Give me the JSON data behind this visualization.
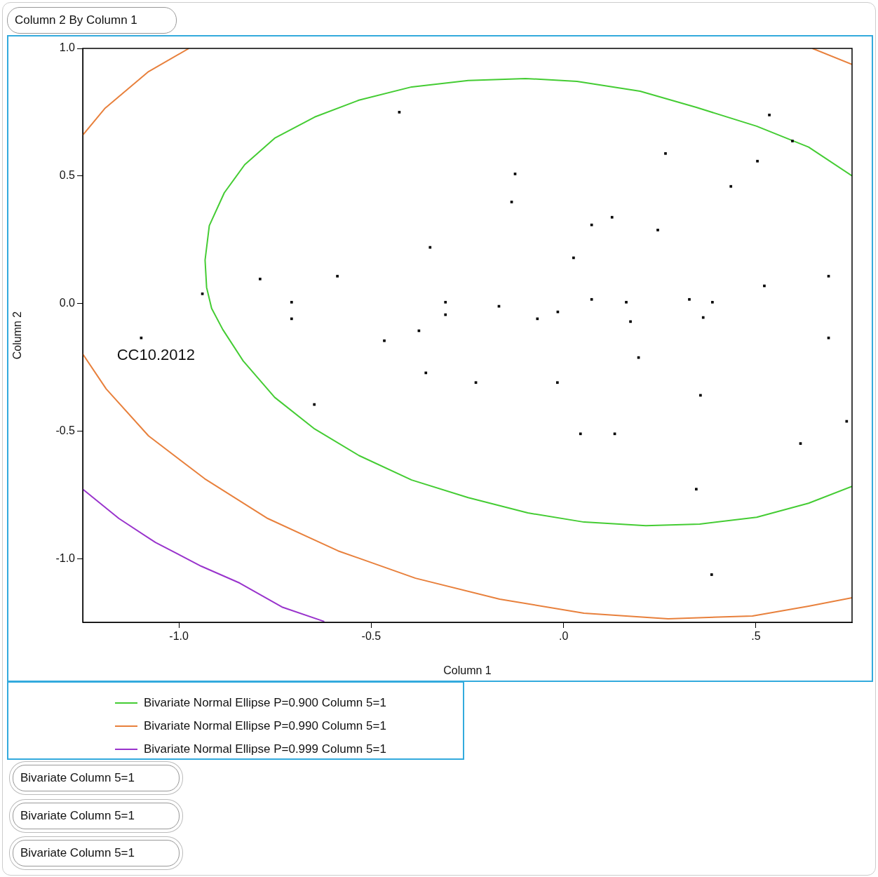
{
  "chart_data": {
    "type": "scatter",
    "title": "Column 2 By Column 1",
    "xlabel": "Column 1",
    "ylabel": "Column 2",
    "xlim": [
      -1.25,
      0.75
    ],
    "ylim": [
      -1.25,
      1.0
    ],
    "xticks": [
      {
        "value": -1.0,
        "label": "-1.0"
      },
      {
        "value": -0.5,
        "label": "-0.5"
      },
      {
        "value": 0,
        "label": ".0"
      },
      {
        "value": 0.5,
        "label": ".5"
      }
    ],
    "yticks": [
      {
        "value": -1.0,
        "label": "-1.0"
      },
      {
        "value": -0.5,
        "label": "-0.5"
      },
      {
        "value": 0,
        "label": "0.0"
      },
      {
        "value": 0.5,
        "label": "0.5"
      },
      {
        "value": 1.0,
        "label": "1.0"
      }
    ],
    "grid": false,
    "legend": "bottom left",
    "marker": "square",
    "line_style": "solid",
    "series": [
      {
        "color": "#000000",
        "x": [
          -0.427,
          -0.126,
          -0.135,
          0.265,
          0.535,
          0.595,
          0.504,
          0.435,
          0.126,
          0.073,
          0.245,
          -0.347,
          0.026,
          -0.789,
          -0.588,
          -0.939,
          0.689,
          0.522,
          -0.707,
          -0.307,
          0.327,
          0.387,
          0.073,
          0.163,
          -0.168,
          -0.015,
          -0.307,
          -0.707,
          -0.068,
          0.363,
          0.174,
          -0.376,
          -1.098,
          0.689,
          -0.466,
          0.195,
          -0.358,
          -0.228,
          -0.016,
          0.356,
          -0.648,
          0.044,
          0.133,
          0.736,
          0.616,
          0.345,
          0.385
        ],
        "values": [
          0.75,
          0.508,
          0.398,
          0.588,
          0.739,
          0.637,
          0.558,
          0.459,
          0.338,
          0.308,
          0.288,
          0.22,
          0.179,
          0.096,
          0.107,
          0.038,
          0.107,
          0.069,
          0.005,
          0.005,
          0.016,
          0.005,
          0.016,
          0.005,
          -0.011,
          -0.033,
          -0.044,
          -0.06,
          -0.06,
          -0.055,
          -0.071,
          -0.107,
          -0.135,
          -0.135,
          -0.146,
          -0.212,
          -0.272,
          -0.31,
          -0.31,
          -0.36,
          -0.396,
          -0.511,
          -0.511,
          -0.462,
          -0.549,
          -0.728,
          -1.063
        ]
      },
      {
        "type": "line",
        "marker": "none",
        "name": "Bivariate Normal Ellipse P=0.900 Column 5=1",
        "color": "#44cc33",
        "x": [
          0.75,
          0.637,
          0.502,
          0.345,
          0.199,
          0.035,
          -0.099,
          -0.248,
          -0.395,
          -0.532,
          -0.647,
          -0.751,
          -0.829,
          -0.882,
          -0.921,
          -0.932,
          -0.928,
          -0.915,
          -0.886,
          -0.833,
          -0.751,
          -0.647,
          -0.532,
          -0.395,
          -0.248,
          -0.093,
          0.053,
          0.214,
          0.354,
          0.502,
          0.637,
          0.75
        ],
        "values": [
          0.5,
          0.613,
          0.695,
          0.769,
          0.832,
          0.871,
          0.882,
          0.874,
          0.849,
          0.797,
          0.731,
          0.648,
          0.544,
          0.434,
          0.305,
          0.17,
          0.063,
          -0.019,
          -0.102,
          -0.225,
          -0.368,
          -0.492,
          -0.596,
          -0.692,
          -0.761,
          -0.821,
          -0.857,
          -0.871,
          -0.865,
          -0.838,
          -0.783,
          -0.717
        ]
      },
      {
        "type": "line",
        "marker": "none",
        "name": "Bivariate Normal Ellipse P=0.990 Column 5=1",
        "color": "#e8803c",
        "x": [
          -1.25,
          -1.193,
          -1.079,
          -0.974,
          null,
          0.647,
          0.75,
          null,
          -1.25,
          -1.189,
          -1.079,
          -0.933,
          -0.769,
          -0.586,
          -0.385,
          -0.166,
          0.053,
          0.272,
          0.491,
          0.637,
          0.75
        ],
        "values": [
          0.66,
          0.764,
          0.909,
          1.0,
          null,
          1.0,
          0.937,
          null,
          -0.198,
          -0.335,
          -0.519,
          -0.687,
          -0.843,
          -0.97,
          -1.077,
          -1.159,
          -1.214,
          -1.236,
          -1.225,
          -1.187,
          -1.154
        ]
      },
      {
        "type": "line",
        "marker": "none",
        "name": "Bivariate Normal Ellipse P=0.999 Column 5=1",
        "color": "#9933cc",
        "x": [
          -1.25,
          -1.156,
          -1.061,
          -0.942,
          -0.842,
          -0.732,
          -0.622
        ],
        "values": [
          -0.728,
          -0.843,
          -0.937,
          -1.03,
          -1.096,
          -1.19,
          -1.247
        ]
      }
    ],
    "annotations": [
      {
        "text": "CC10.2012",
        "x": -1.098,
        "y": -0.135
      },
      "Bivariate  Column 5=1",
      "Bivariate  Column 5=1",
      "Bivariate  Column 5=1"
    ]
  }
}
